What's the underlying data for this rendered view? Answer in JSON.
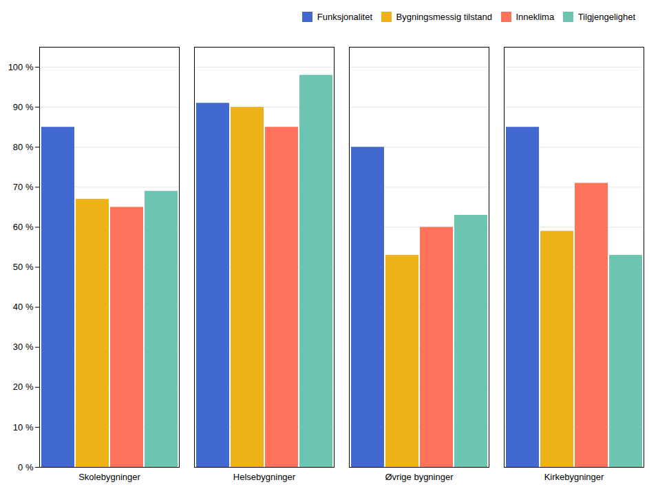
{
  "chart_data": {
    "type": "bar",
    "categories": [
      "Skolebygninger",
      "Helsebygninger",
      "Øvrige bygninger",
      "Kirkebygninger"
    ],
    "series": [
      {
        "name": "Funksjonalitet",
        "values": [
          85,
          91,
          80,
          85
        ]
      },
      {
        "name": "Bygningsmessig tilstand",
        "values": [
          67,
          90,
          53,
          59
        ]
      },
      {
        "name": "Inneklima",
        "values": [
          65,
          85,
          60,
          71
        ]
      },
      {
        "name": "Tilgjengelighet",
        "values": [
          69,
          98,
          63,
          53
        ]
      }
    ],
    "ylim": [
      0,
      105
    ],
    "yticks": [
      {
        "value": 0,
        "label": "0 %"
      },
      {
        "value": 10,
        "label": "10 %"
      },
      {
        "value": 20,
        "label": "20 %"
      },
      {
        "value": 30,
        "label": "30 %"
      },
      {
        "value": 40,
        "label": "40 %"
      },
      {
        "value": 50,
        "label": "50 %"
      },
      {
        "value": 60,
        "label": "60 %"
      },
      {
        "value": 70,
        "label": "70 %"
      },
      {
        "value": 80,
        "label": "80 %"
      },
      {
        "value": 90,
        "label": "90 %"
      },
      {
        "value": 100,
        "label": "100 %"
      }
    ],
    "grid": true,
    "legend": "upper right"
  }
}
